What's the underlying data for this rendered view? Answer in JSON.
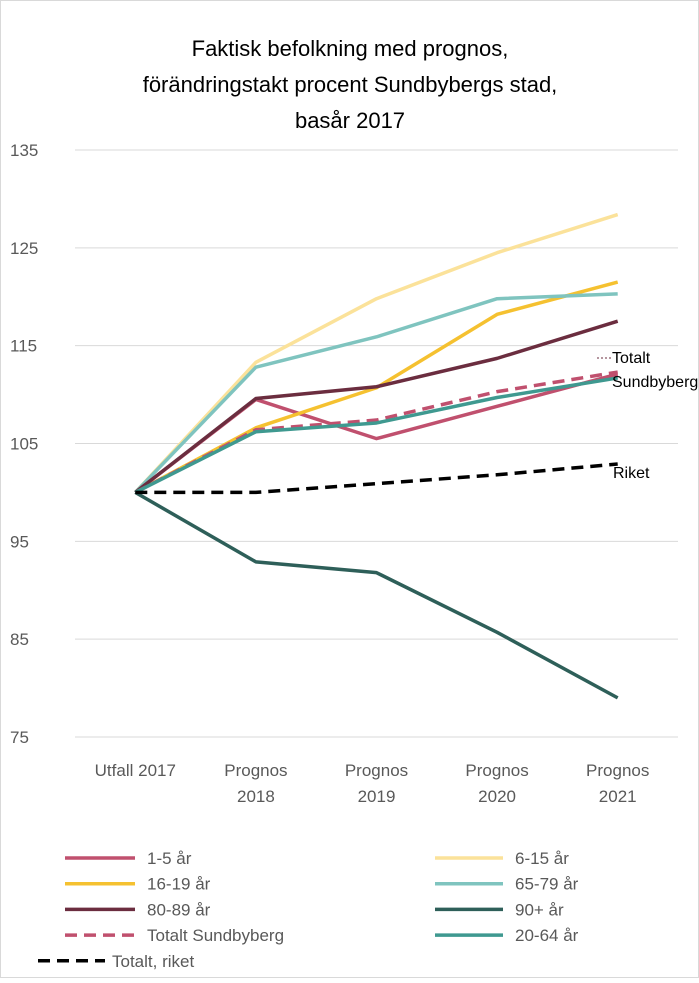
{
  "chart_data": {
    "type": "line",
    "title": [
      "Faktisk befolkning med prognos,",
      "förändringstakt procent Sundbybergs stad,"
    ],
    "subtitle": "basår 2017",
    "categories": [
      [
        "Utfall 2017"
      ],
      [
        "Prognos",
        "2018"
      ],
      [
        "Prognos",
        "2019"
      ],
      [
        "Prognos",
        "2020"
      ],
      [
        "Prognos",
        "2021"
      ]
    ],
    "ylim": [
      75,
      135
    ],
    "yticks": [
      75,
      85,
      95,
      105,
      115,
      125,
      135
    ],
    "grid": true,
    "series": [
      {
        "name": "1-5 år",
        "color": "#c0506e",
        "dash": false,
        "values": [
          100,
          109.5,
          105.5,
          108.8,
          112.1
        ]
      },
      {
        "name": "6-15 år",
        "color": "#fbe29a",
        "dash": false,
        "values": [
          100,
          113.3,
          119.8,
          124.5,
          128.4
        ]
      },
      {
        "name": "16-19 år",
        "color": "#f5c130",
        "dash": false,
        "values": [
          100,
          106.6,
          110.7,
          118.2,
          121.5
        ]
      },
      {
        "name": "65-79 år",
        "color": "#7fc4bf",
        "dash": false,
        "values": [
          100,
          112.8,
          115.9,
          119.8,
          120.3
        ]
      },
      {
        "name": "80-89 år",
        "color": "#6b2d3f",
        "dash": false,
        "values": [
          100,
          109.6,
          110.8,
          113.7,
          117.5
        ]
      },
      {
        "name": "90+ år",
        "color": "#2e5f59",
        "dash": false,
        "values": [
          100,
          92.9,
          91.8,
          85.7,
          79.0
        ]
      },
      {
        "name": "Totalt Sundbyberg",
        "color": "#c0506e",
        "dash": true,
        "values": [
          100,
          106.4,
          107.4,
          110.3,
          112.3
        ]
      },
      {
        "name": "20-64 år",
        "color": "#3f9990",
        "dash": false,
        "values": [
          100,
          106.2,
          107.1,
          109.7,
          111.7
        ]
      },
      {
        "name": "Totalt, riket",
        "color": "#000000",
        "dash": true,
        "values": [
          100,
          100.0,
          100.9,
          101.8,
          102.9
        ]
      }
    ],
    "annotations": [
      {
        "lines": [
          "Totalt",
          "Sundbyberg"
        ]
      },
      {
        "lines": [
          "Riket"
        ]
      }
    ]
  }
}
